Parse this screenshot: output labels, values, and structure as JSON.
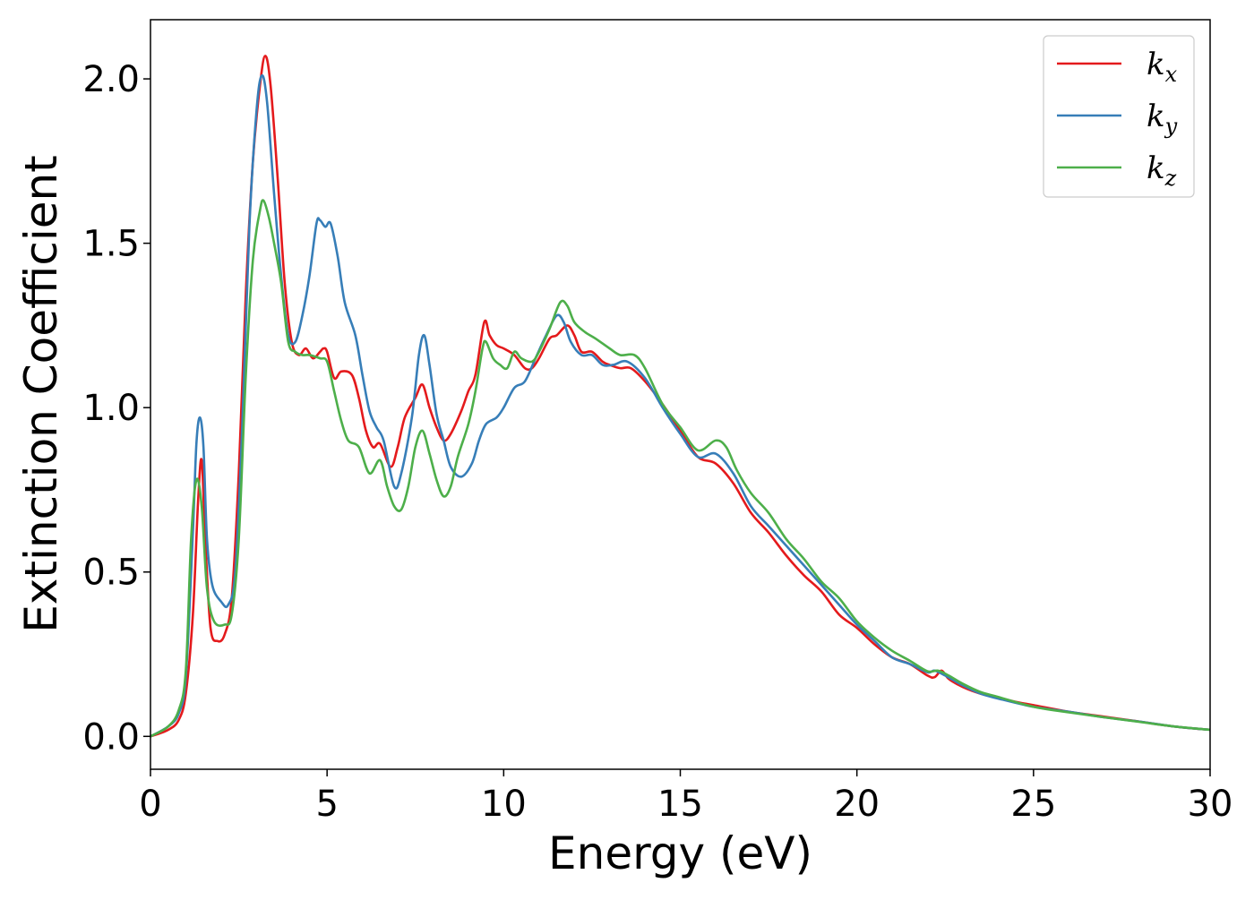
{
  "chart_data": {
    "type": "line",
    "title": "",
    "xlabel": "Energy (eV)",
    "ylabel": "Extinction Coefficient",
    "xlim": [
      0,
      30
    ],
    "ylim": [
      -0.1,
      2.18
    ],
    "xticks": [
      0,
      5,
      10,
      15,
      20,
      25,
      30
    ],
    "xtick_labels": [
      "0",
      "5",
      "10",
      "15",
      "20",
      "25",
      "30"
    ],
    "yticks": [
      0.0,
      0.5,
      1.0,
      1.5,
      2.0
    ],
    "ytick_labels": [
      "0.0",
      "0.5",
      "1.0",
      "1.5",
      "2.0"
    ],
    "grid": false,
    "legend_position": "top-right",
    "series": [
      {
        "name": "k_x",
        "label_main": "k",
        "label_sub": "x",
        "color": "#e41a1c",
        "points": [
          [
            0,
            0
          ],
          [
            0.5,
            0.02
          ],
          [
            0.8,
            0.05
          ],
          [
            1.0,
            0.13
          ],
          [
            1.2,
            0.37
          ],
          [
            1.35,
            0.72
          ],
          [
            1.45,
            0.84
          ],
          [
            1.55,
            0.6
          ],
          [
            1.7,
            0.33
          ],
          [
            1.9,
            0.29
          ],
          [
            2.1,
            0.31
          ],
          [
            2.3,
            0.42
          ],
          [
            2.5,
            0.8
          ],
          [
            2.7,
            1.35
          ],
          [
            2.9,
            1.75
          ],
          [
            3.1,
            1.98
          ],
          [
            3.25,
            2.07
          ],
          [
            3.4,
            1.98
          ],
          [
            3.6,
            1.7
          ],
          [
            3.8,
            1.38
          ],
          [
            4.0,
            1.2
          ],
          [
            4.2,
            1.16
          ],
          [
            4.4,
            1.18
          ],
          [
            4.6,
            1.15
          ],
          [
            4.8,
            1.17
          ],
          [
            4.9,
            1.18
          ],
          [
            5.0,
            1.17
          ],
          [
            5.2,
            1.09
          ],
          [
            5.4,
            1.11
          ],
          [
            5.7,
            1.1
          ],
          [
            5.9,
            1.03
          ],
          [
            6.1,
            0.93
          ],
          [
            6.3,
            0.88
          ],
          [
            6.5,
            0.89
          ],
          [
            6.8,
            0.82
          ],
          [
            7.0,
            0.88
          ],
          [
            7.2,
            0.97
          ],
          [
            7.5,
            1.03
          ],
          [
            7.7,
            1.07
          ],
          [
            7.9,
            1.0
          ],
          [
            8.1,
            0.94
          ],
          [
            8.3,
            0.9
          ],
          [
            8.5,
            0.92
          ],
          [
            8.8,
            0.99
          ],
          [
            9.0,
            1.05
          ],
          [
            9.2,
            1.1
          ],
          [
            9.45,
            1.26
          ],
          [
            9.6,
            1.22
          ],
          [
            9.8,
            1.19
          ],
          [
            10.0,
            1.18
          ],
          [
            10.3,
            1.16
          ],
          [
            10.6,
            1.12
          ],
          [
            10.8,
            1.12
          ],
          [
            11.0,
            1.15
          ],
          [
            11.3,
            1.21
          ],
          [
            11.5,
            1.22
          ],
          [
            11.8,
            1.25
          ],
          [
            12.0,
            1.22
          ],
          [
            12.2,
            1.17
          ],
          [
            12.5,
            1.17
          ],
          [
            12.8,
            1.14
          ],
          [
            13.0,
            1.13
          ],
          [
            13.3,
            1.12
          ],
          [
            13.6,
            1.12
          ],
          [
            14.0,
            1.08
          ],
          [
            14.5,
            1.01
          ],
          [
            15.0,
            0.93
          ],
          [
            15.5,
            0.85
          ],
          [
            16.0,
            0.83
          ],
          [
            16.5,
            0.77
          ],
          [
            17.0,
            0.68
          ],
          [
            17.5,
            0.62
          ],
          [
            18.0,
            0.55
          ],
          [
            18.5,
            0.49
          ],
          [
            19.0,
            0.44
          ],
          [
            19.5,
            0.37
          ],
          [
            20.0,
            0.33
          ],
          [
            20.5,
            0.28
          ],
          [
            21.0,
            0.24
          ],
          [
            21.5,
            0.22
          ],
          [
            22.0,
            0.185
          ],
          [
            22.2,
            0.18
          ],
          [
            22.4,
            0.2
          ],
          [
            22.6,
            0.175
          ],
          [
            23.0,
            0.15
          ],
          [
            23.5,
            0.13
          ],
          [
            24.0,
            0.118
          ],
          [
            24.5,
            0.105
          ],
          [
            25.0,
            0.095
          ],
          [
            26.0,
            0.075
          ],
          [
            27.0,
            0.06
          ],
          [
            28.0,
            0.045
          ],
          [
            29.0,
            0.03
          ],
          [
            30.0,
            0.02
          ]
        ]
      },
      {
        "name": "k_y",
        "label_main": "k",
        "label_sub": "y",
        "color": "#377eb8",
        "points": [
          [
            0,
            0
          ],
          [
            0.5,
            0.03
          ],
          [
            0.8,
            0.07
          ],
          [
            1.0,
            0.18
          ],
          [
            1.2,
            0.62
          ],
          [
            1.3,
            0.89
          ],
          [
            1.4,
            0.97
          ],
          [
            1.5,
            0.88
          ],
          [
            1.6,
            0.6
          ],
          [
            1.75,
            0.46
          ],
          [
            2.0,
            0.41
          ],
          [
            2.2,
            0.4
          ],
          [
            2.4,
            0.5
          ],
          [
            2.6,
            0.95
          ],
          [
            2.8,
            1.55
          ],
          [
            3.0,
            1.9
          ],
          [
            3.15,
            2.01
          ],
          [
            3.3,
            1.93
          ],
          [
            3.5,
            1.65
          ],
          [
            3.7,
            1.4
          ],
          [
            3.9,
            1.22
          ],
          [
            4.1,
            1.2
          ],
          [
            4.3,
            1.28
          ],
          [
            4.5,
            1.4
          ],
          [
            4.7,
            1.56
          ],
          [
            4.8,
            1.57
          ],
          [
            4.95,
            1.55
          ],
          [
            5.1,
            1.56
          ],
          [
            5.3,
            1.46
          ],
          [
            5.5,
            1.32
          ],
          [
            5.8,
            1.22
          ],
          [
            6.0,
            1.1
          ],
          [
            6.2,
            0.99
          ],
          [
            6.4,
            0.94
          ],
          [
            6.6,
            0.9
          ],
          [
            6.9,
            0.76
          ],
          [
            7.1,
            0.8
          ],
          [
            7.4,
            0.97
          ],
          [
            7.6,
            1.16
          ],
          [
            7.75,
            1.22
          ],
          [
            7.9,
            1.13
          ],
          [
            8.1,
            0.98
          ],
          [
            8.3,
            0.9
          ],
          [
            8.5,
            0.82
          ],
          [
            8.8,
            0.79
          ],
          [
            9.1,
            0.83
          ],
          [
            9.3,
            0.9
          ],
          [
            9.5,
            0.95
          ],
          [
            9.8,
            0.97
          ],
          [
            10.0,
            1.0
          ],
          [
            10.3,
            1.06
          ],
          [
            10.6,
            1.08
          ],
          [
            10.9,
            1.15
          ],
          [
            11.2,
            1.22
          ],
          [
            11.5,
            1.28
          ],
          [
            11.7,
            1.26
          ],
          [
            11.9,
            1.2
          ],
          [
            12.2,
            1.16
          ],
          [
            12.5,
            1.16
          ],
          [
            12.8,
            1.13
          ],
          [
            13.1,
            1.13
          ],
          [
            13.5,
            1.14
          ],
          [
            14.0,
            1.09
          ],
          [
            14.5,
            1.0
          ],
          [
            15.0,
            0.92
          ],
          [
            15.5,
            0.85
          ],
          [
            16.0,
            0.86
          ],
          [
            16.5,
            0.8
          ],
          [
            17.0,
            0.7
          ],
          [
            17.5,
            0.64
          ],
          [
            18.0,
            0.58
          ],
          [
            18.5,
            0.52
          ],
          [
            19.0,
            0.46
          ],
          [
            19.5,
            0.4
          ],
          [
            20.0,
            0.34
          ],
          [
            20.5,
            0.29
          ],
          [
            21.0,
            0.24
          ],
          [
            21.5,
            0.22
          ],
          [
            22.0,
            0.195
          ],
          [
            22.2,
            0.2
          ],
          [
            22.5,
            0.185
          ],
          [
            23.0,
            0.155
          ],
          [
            23.5,
            0.13
          ],
          [
            24.0,
            0.115
          ],
          [
            25.0,
            0.09
          ],
          [
            26.0,
            0.075
          ],
          [
            27.0,
            0.058
          ],
          [
            28.0,
            0.045
          ],
          [
            29.0,
            0.03
          ],
          [
            30.0,
            0.02
          ]
        ]
      },
      {
        "name": "k_z",
        "label_main": "k",
        "label_sub": "z",
        "color": "#4daf4a",
        "points": [
          [
            0,
            0
          ],
          [
            0.5,
            0.03
          ],
          [
            0.8,
            0.08
          ],
          [
            1.0,
            0.2
          ],
          [
            1.15,
            0.6
          ],
          [
            1.3,
            0.78
          ],
          [
            1.45,
            0.7
          ],
          [
            1.6,
            0.45
          ],
          [
            1.8,
            0.35
          ],
          [
            2.1,
            0.34
          ],
          [
            2.3,
            0.37
          ],
          [
            2.5,
            0.6
          ],
          [
            2.7,
            1.1
          ],
          [
            2.9,
            1.45
          ],
          [
            3.1,
            1.6
          ],
          [
            3.2,
            1.63
          ],
          [
            3.35,
            1.58
          ],
          [
            3.5,
            1.5
          ],
          [
            3.7,
            1.38
          ],
          [
            3.9,
            1.2
          ],
          [
            4.1,
            1.17
          ],
          [
            4.3,
            1.16
          ],
          [
            4.5,
            1.16
          ],
          [
            4.8,
            1.15
          ],
          [
            5.0,
            1.14
          ],
          [
            5.2,
            1.05
          ],
          [
            5.4,
            0.96
          ],
          [
            5.6,
            0.9
          ],
          [
            5.9,
            0.88
          ],
          [
            6.2,
            0.8
          ],
          [
            6.5,
            0.84
          ],
          [
            6.7,
            0.76
          ],
          [
            6.9,
            0.7
          ],
          [
            7.1,
            0.69
          ],
          [
            7.3,
            0.76
          ],
          [
            7.5,
            0.88
          ],
          [
            7.7,
            0.93
          ],
          [
            7.9,
            0.86
          ],
          [
            8.1,
            0.78
          ],
          [
            8.3,
            0.73
          ],
          [
            8.5,
            0.76
          ],
          [
            8.7,
            0.85
          ],
          [
            9.0,
            0.95
          ],
          [
            9.2,
            1.05
          ],
          [
            9.4,
            1.18
          ],
          [
            9.5,
            1.2
          ],
          [
            9.7,
            1.15
          ],
          [
            9.9,
            1.13
          ],
          [
            10.1,
            1.12
          ],
          [
            10.3,
            1.17
          ],
          [
            10.5,
            1.15
          ],
          [
            10.8,
            1.14
          ],
          [
            11.0,
            1.17
          ],
          [
            11.3,
            1.24
          ],
          [
            11.6,
            1.32
          ],
          [
            11.8,
            1.31
          ],
          [
            12.0,
            1.26
          ],
          [
            12.3,
            1.23
          ],
          [
            12.6,
            1.21
          ],
          [
            13.0,
            1.18
          ],
          [
            13.3,
            1.16
          ],
          [
            13.7,
            1.16
          ],
          [
            14.0,
            1.12
          ],
          [
            14.5,
            1.01
          ],
          [
            15.0,
            0.94
          ],
          [
            15.5,
            0.87
          ],
          [
            16.0,
            0.9
          ],
          [
            16.3,
            0.88
          ],
          [
            16.6,
            0.81
          ],
          [
            17.0,
            0.74
          ],
          [
            17.5,
            0.68
          ],
          [
            18.0,
            0.6
          ],
          [
            18.5,
            0.54
          ],
          [
            19.0,
            0.47
          ],
          [
            19.5,
            0.42
          ],
          [
            20.0,
            0.35
          ],
          [
            20.5,
            0.3
          ],
          [
            21.0,
            0.26
          ],
          [
            21.5,
            0.23
          ],
          [
            22.0,
            0.198
          ],
          [
            22.3,
            0.2
          ],
          [
            22.6,
            0.185
          ],
          [
            23.0,
            0.16
          ],
          [
            23.5,
            0.135
          ],
          [
            24.0,
            0.12
          ],
          [
            25.0,
            0.09
          ],
          [
            26.0,
            0.073
          ],
          [
            27.0,
            0.058
          ],
          [
            28.0,
            0.044
          ],
          [
            29.0,
            0.03
          ],
          [
            30.0,
            0.02
          ]
        ]
      }
    ]
  }
}
